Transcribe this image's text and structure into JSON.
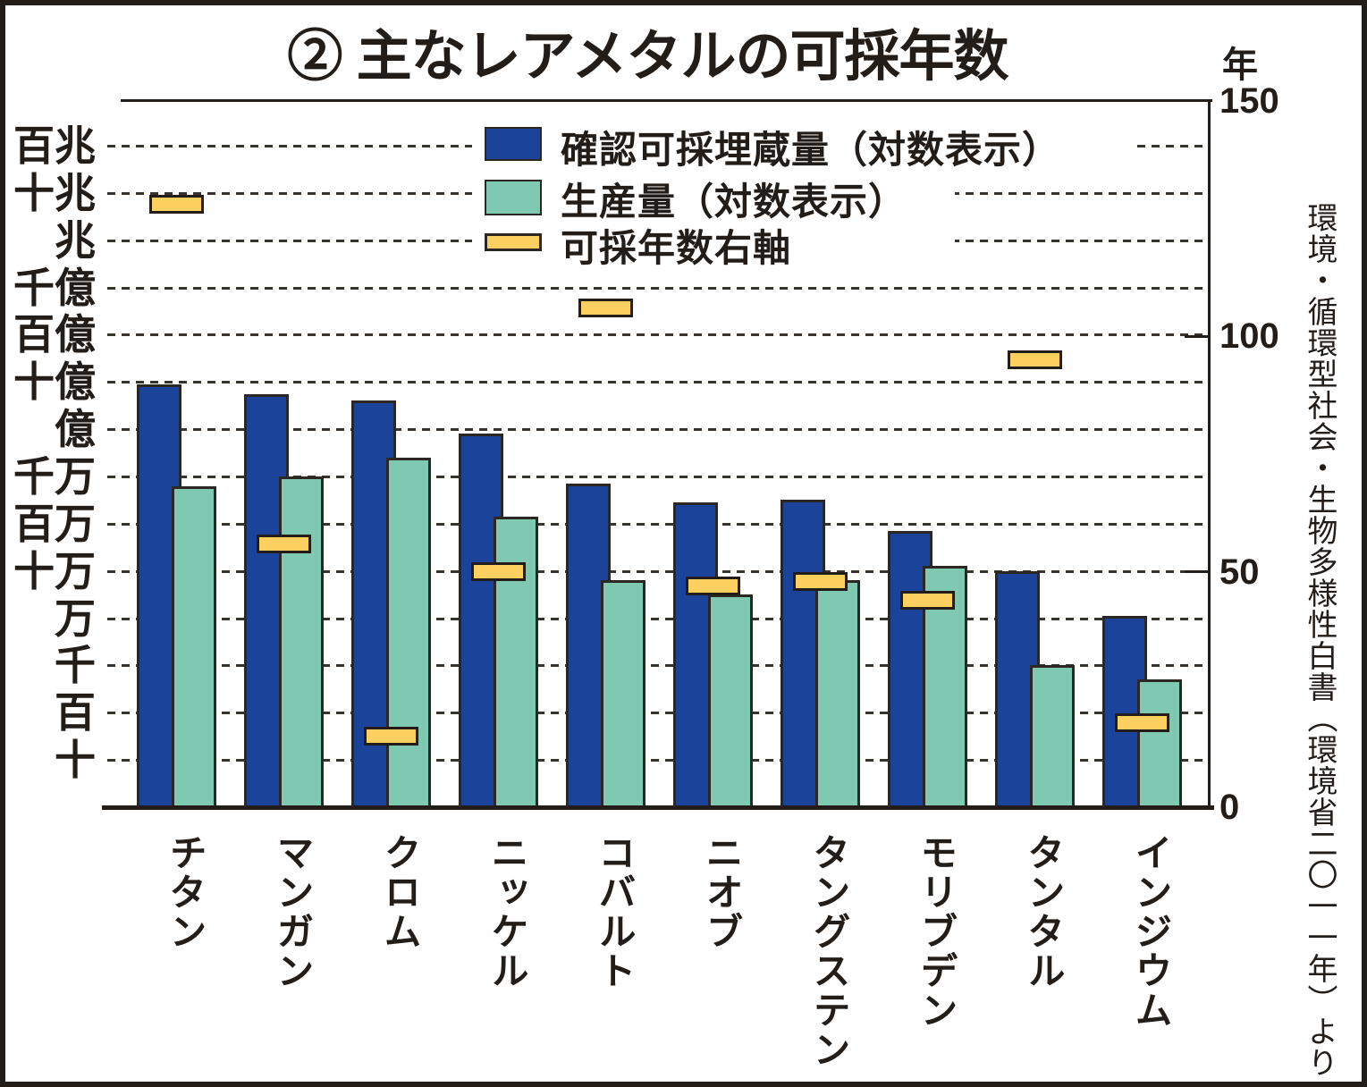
{
  "figure": {
    "title": "② 主なレアメタルの可採年数",
    "right_axis_unit": "年",
    "source": "環境・循環型社会・生物多様性白書（環境省二〇一一年）より"
  },
  "legend": {
    "items": [
      {
        "label": "確認可採埋蔵量（対数表示）",
        "swatch": "reserves-blue"
      },
      {
        "label": "生産量（対数表示）",
        "swatch": "production-teal"
      },
      {
        "label": "可採年数右軸",
        "swatch": "years-yellow"
      }
    ]
  },
  "left_axis": {
    "type": "logarithmic",
    "labels": [
      {
        "text": "百兆",
        "exp": 14
      },
      {
        "text": "十兆",
        "exp": 13
      },
      {
        "text": "兆",
        "exp": 12
      },
      {
        "text": "千億",
        "exp": 11
      },
      {
        "text": "百億",
        "exp": 10
      },
      {
        "text": "十億",
        "exp": 9
      },
      {
        "text": "億",
        "exp": 8
      },
      {
        "text": "千万",
        "exp": 7
      },
      {
        "text": "百万",
        "exp": 6
      },
      {
        "text": "十万",
        "exp": 5
      },
      {
        "text": "万",
        "exp": 4
      },
      {
        "text": "千",
        "exp": 3
      },
      {
        "text": "百",
        "exp": 2
      },
      {
        "text": "十",
        "exp": 1
      }
    ]
  },
  "right_axis": {
    "ticks": [
      {
        "label": "150",
        "years": 150
      },
      {
        "label": "100",
        "years": 100
      },
      {
        "label": "50",
        "years": 50
      },
      {
        "label": "0",
        "years": 0
      }
    ]
  },
  "chart_data": {
    "type": "bar",
    "title": "② 主なレアメタルの可採年数",
    "categories": [
      "チタン",
      "マンガン",
      "クロム",
      "ニッケル",
      "コバルト",
      "ニオブ",
      "タングステン",
      "モリブデン",
      "タンタル",
      "インジウム"
    ],
    "series": [
      {
        "name": "確認可採埋蔵量（対数表示）",
        "type": "bar",
        "axis": "left-log",
        "log10_values": [
          8.95,
          8.75,
          8.6,
          7.9,
          6.85,
          6.45,
          6.5,
          5.85,
          5.0,
          4.05
        ],
        "approx_values_read_from_log_axis": [
          890000000,
          560000000,
          400000000,
          79000000,
          7100000,
          2800000,
          3200000,
          710000,
          100000,
          11000
        ]
      },
      {
        "name": "生産量（対数表示）",
        "type": "bar",
        "axis": "left-log",
        "log10_values": [
          6.8,
          7.0,
          7.4,
          6.15,
          4.8,
          4.5,
          4.8,
          5.1,
          3.0,
          2.7
        ],
        "approx_values_read_from_log_axis": [
          6300000,
          10000000,
          25000000,
          1400000,
          63000,
          32000,
          63000,
          130000,
          1000,
          500
        ]
      },
      {
        "name": "可採年数右軸",
        "type": "marker",
        "axis": "right",
        "values_years": [
          128,
          56,
          15,
          50,
          106,
          47,
          48,
          44,
          95,
          18
        ]
      }
    ],
    "left_axis_tick_labels": [
      "十",
      "百",
      "千",
      "万",
      "十万",
      "百万",
      "千万",
      "億",
      "十億",
      "百億",
      "千億",
      "兆",
      "十兆",
      "百兆"
    ],
    "right_ylim": [
      0,
      150
    ],
    "grid": "dashed horizontal, one line per decade",
    "legend_position": "top-center inside plot"
  },
  "colors": {
    "reserves_bar": "#1a4399",
    "production_bar": "#7fc8b1",
    "years_marker": "#fcd05e",
    "axis_and_text": "#231d19",
    "background": "#ffffff"
  }
}
